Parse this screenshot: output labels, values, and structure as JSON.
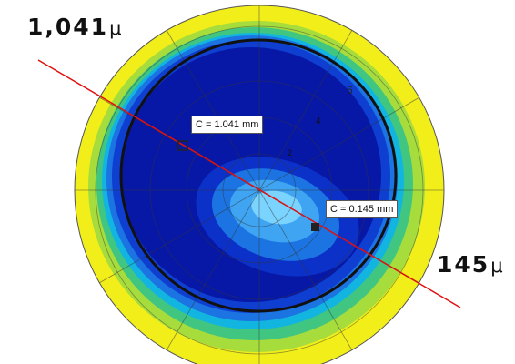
{
  "labels": {
    "top_value": "1,041",
    "top_unit": "μ",
    "bottom_value": "145",
    "bottom_unit": "μ"
  },
  "callouts": {
    "first": "C = 1.041 mm",
    "second": "C = 0.145 mm"
  },
  "map": {
    "ring_labels": [
      "6",
      "4",
      "2"
    ],
    "colors": {
      "outer_yellow": "#f2ee1a",
      "lime": "#a6dd3c",
      "green": "#40c680",
      "cyan": "#12b5e0",
      "light_blue": "#1b74e2",
      "medium_blue": "#0f3fd0",
      "deep_blue": "#0818a6",
      "inner_blue": "#0c31c8",
      "lens_cyan": "#3fa4f2",
      "lens_center": "#7ad4ff",
      "section_line": "#e01010",
      "marker": "#222222"
    }
  }
}
